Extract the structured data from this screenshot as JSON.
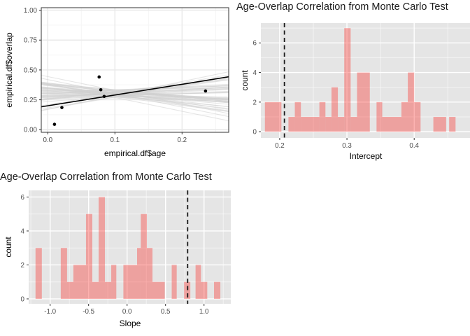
{
  "colors": {
    "bar_fill": "rgba(250,60,55,0.40)",
    "panel_bg_gray": "#E5E5E5",
    "panel_bg_white": "#FFFFFF",
    "grid_major_on_gray": "#FFFFFF",
    "grid_minor_on_gray": "rgba(255,255,255,0.55)",
    "grid_major_on_white": "#E9E9E9",
    "grid_minor_on_white": "#F5F5F5",
    "panel_border": "#333333",
    "tick_mark": "#333333",
    "tick_label": "#4D4D4D",
    "axis_title": "#000000",
    "title_text": "#1A1A1A",
    "dashed_line": "#1A1A1A",
    "mc_line": "#CFCFCF",
    "fit_line": "#000000",
    "point": "#000000"
  },
  "chart_data": {
    "scatter": {
      "type": "scatter",
      "xlabel": "empirical.df$age",
      "ylabel": "empirical.df$overlap",
      "xlim": [
        -0.0097,
        0.2695
      ],
      "ylim": [
        -0.022,
        1.021
      ],
      "x_ticks": [
        {
          "v": 0.0,
          "label": "0.0"
        },
        {
          "v": 0.1,
          "label": "0.1"
        },
        {
          "v": 0.2,
          "label": "0.2"
        }
      ],
      "y_ticks": [
        {
          "v": 0.0,
          "label": "0.00"
        },
        {
          "v": 0.25,
          "label": "0.25"
        },
        {
          "v": 0.5,
          "label": "0.50"
        },
        {
          "v": 0.75,
          "label": "0.75"
        },
        {
          "v": 1.0,
          "label": "1.00"
        }
      ],
      "x_minor": [
        0.05,
        0.15,
        0.25
      ],
      "y_minor": [
        0.125,
        0.375,
        0.625,
        0.875
      ],
      "points": [
        [
          0.01,
          0.045
        ],
        [
          0.021,
          0.185
        ],
        [
          0.0765,
          0.441
        ],
        [
          0.079,
          0.334
        ],
        [
          0.084,
          0.278
        ],
        [
          0.235,
          0.324
        ]
      ],
      "fit_line": {
        "intercept": 0.2,
        "slope": 0.9
      },
      "mc_lines": {
        "count": 50,
        "pivot_x": 0.1,
        "pivot_y": 0.3,
        "pivot_spread": 0.07,
        "slopes_from": "slope_histogram"
      }
    },
    "intercept_histogram": {
      "type": "bar",
      "title": "Age-Overlap Correlation from Monte Carlo Test",
      "title_clipped_at_right": true,
      "xlabel": "Intercept",
      "ylabel": "count",
      "xlim": [
        0.172,
        0.483
      ],
      "ylim": [
        -0.42,
        7.34
      ],
      "x_ticks": [
        {
          "v": 0.2,
          "label": "0.2"
        },
        {
          "v": 0.3,
          "label": "0.3"
        },
        {
          "v": 0.4,
          "label": "0.4"
        }
      ],
      "y_ticks": [
        {
          "v": 0,
          "label": "0"
        },
        {
          "v": 2,
          "label": "2"
        },
        {
          "v": 4,
          "label": "4"
        },
        {
          "v": 6,
          "label": "6"
        }
      ],
      "x_minor": [
        0.25,
        0.35,
        0.45
      ],
      "y_minor": [
        1,
        3,
        5,
        7
      ],
      "vline": 0.207,
      "bars": [
        [
          0.178,
          0.2025,
          2
        ],
        [
          0.213,
          0.2225,
          1
        ],
        [
          0.2225,
          0.2315,
          2
        ],
        [
          0.2315,
          0.259,
          1
        ],
        [
          0.259,
          0.268,
          2
        ],
        [
          0.268,
          0.277,
          1
        ],
        [
          0.277,
          0.2865,
          3
        ],
        [
          0.2865,
          0.296,
          1
        ],
        [
          0.296,
          0.3055,
          7
        ],
        [
          0.3055,
          0.315,
          1
        ],
        [
          0.315,
          0.334,
          4
        ],
        [
          0.344,
          0.3525,
          2
        ],
        [
          0.3525,
          0.381,
          1
        ],
        [
          0.381,
          0.3905,
          2
        ],
        [
          0.3905,
          0.4,
          4
        ],
        [
          0.4,
          0.4095,
          2
        ],
        [
          0.4285,
          0.4475,
          1
        ],
        [
          0.452,
          0.4615,
          1
        ]
      ]
    },
    "slope_histogram": {
      "type": "bar",
      "title": "Age-Overlap Correlation from Monte Carlo Test",
      "xlabel": "Slope",
      "ylabel": "count",
      "xlim": [
        -1.279,
        1.348
      ],
      "ylim": [
        -0.29,
        6.39
      ],
      "x_ticks": [
        {
          "v": -1.0,
          "label": "-1.0"
        },
        {
          "v": -0.5,
          "label": "-0.5"
        },
        {
          "v": 0.0,
          "label": "0.0"
        },
        {
          "v": 0.5,
          "label": "0.5"
        },
        {
          "v": 1.0,
          "label": "1.0"
        }
      ],
      "y_ticks": [
        {
          "v": 0,
          "label": "0"
        },
        {
          "v": 2,
          "label": "2"
        },
        {
          "v": 4,
          "label": "4"
        },
        {
          "v": 6,
          "label": "6"
        }
      ],
      "x_minor": [
        -1.25,
        -0.75,
        -0.25,
        0.25,
        0.75,
        1.25
      ],
      "y_minor": [
        1,
        3,
        5
      ],
      "vline": 0.787,
      "bars": [
        [
          -1.19,
          -1.108,
          3
        ],
        [
          -0.862,
          -0.78,
          3
        ],
        [
          -0.78,
          -0.698,
          1
        ],
        [
          -0.698,
          -0.534,
          2
        ],
        [
          -0.534,
          -0.452,
          5
        ],
        [
          -0.452,
          -0.37,
          1
        ],
        [
          -0.37,
          -0.288,
          6
        ],
        [
          -0.288,
          -0.206,
          1
        ],
        [
          -0.206,
          -0.14,
          2
        ],
        [
          -0.048,
          0.13,
          2
        ],
        [
          0.13,
          0.178,
          3
        ],
        [
          0.178,
          0.257,
          5
        ],
        [
          0.257,
          0.33,
          3
        ],
        [
          0.33,
          0.49,
          1
        ],
        [
          0.58,
          0.645,
          2
        ],
        [
          0.74,
          0.822,
          1
        ],
        [
          0.89,
          0.96,
          2
        ],
        [
          0.96,
          1.042,
          1
        ],
        [
          1.13,
          1.212,
          1
        ]
      ]
    }
  }
}
